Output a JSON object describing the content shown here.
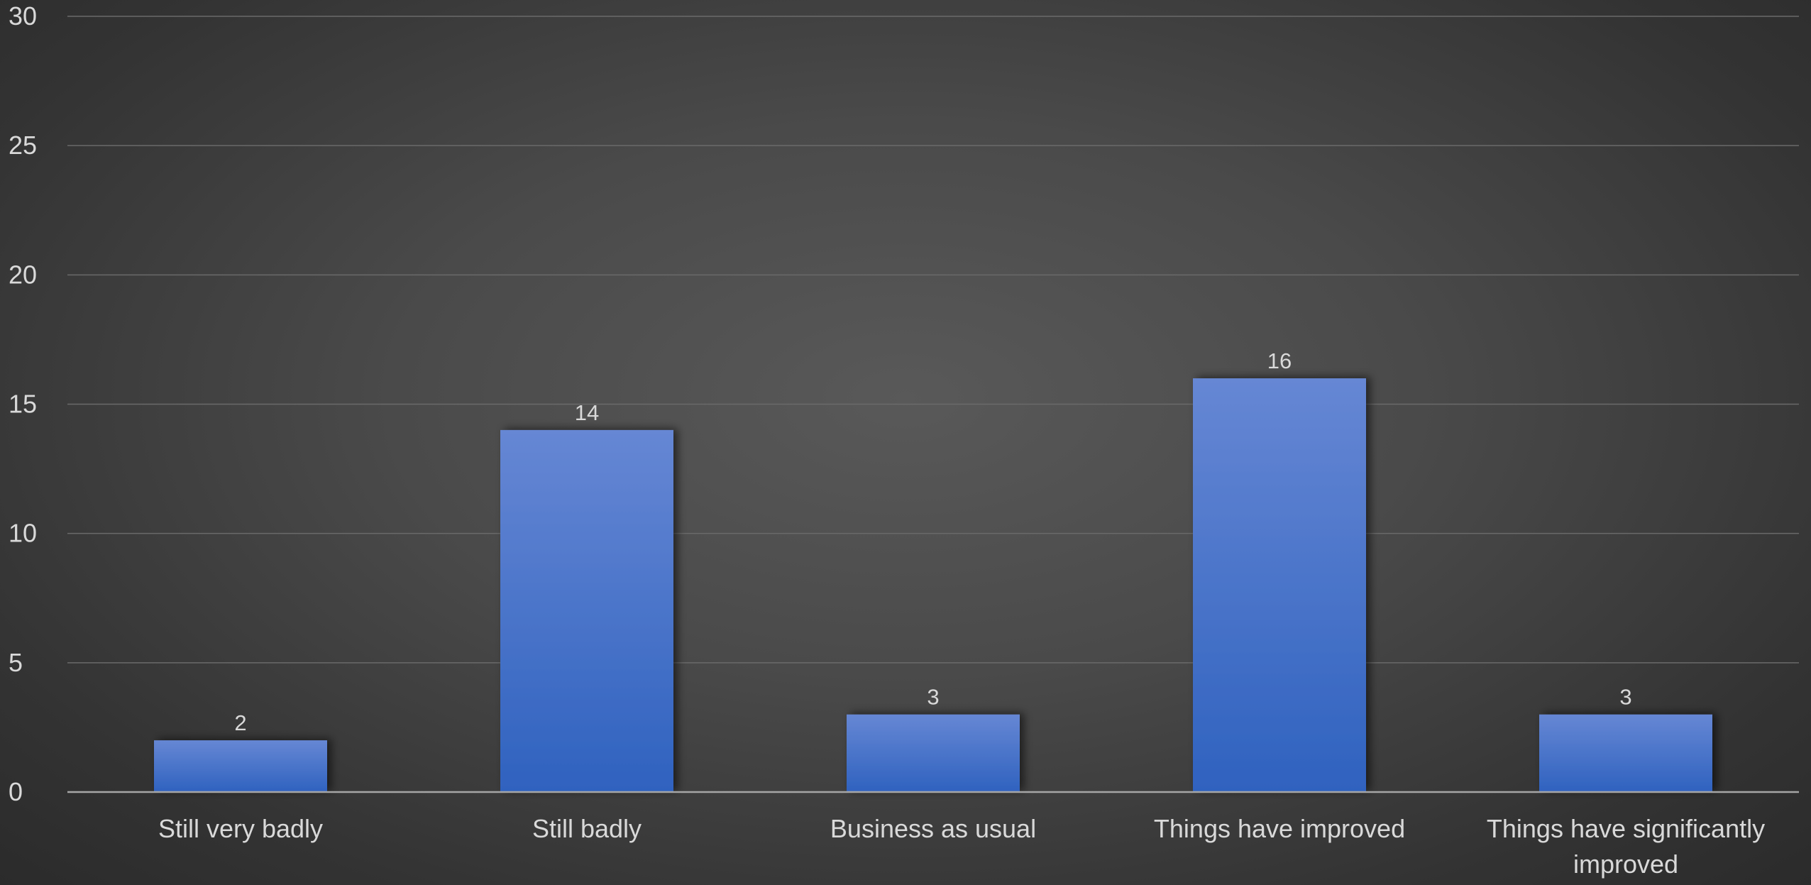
{
  "chart_data": {
    "type": "bar",
    "title": "",
    "xlabel": "",
    "ylabel": "",
    "categories": [
      "Still very badly",
      "Still badly",
      "Business as usual",
      "Things have improved",
      "Things have significantly improved"
    ],
    "values": [
      2,
      14,
      3,
      16,
      3
    ],
    "ylim": [
      0,
      30
    ],
    "yticks": [
      0,
      5,
      10,
      15,
      20,
      25,
      30
    ],
    "grid": true,
    "legend": "none",
    "data_labels": true,
    "colors": {
      "bar_top": "#6687d4",
      "bar_bottom": "#2f62bf",
      "text": "#d9d9d9",
      "gridline": "#6a6a6a",
      "axis": "#a6a6a6"
    }
  }
}
